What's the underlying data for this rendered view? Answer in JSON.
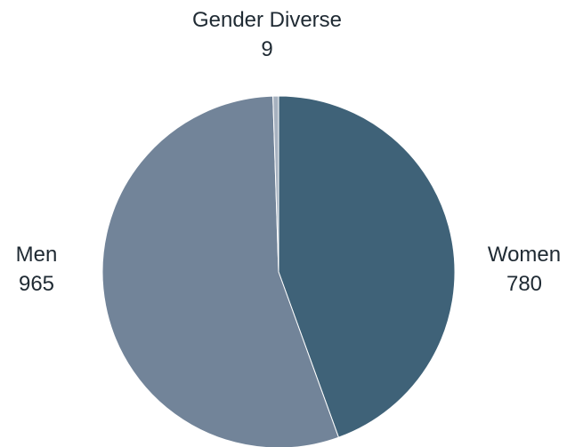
{
  "chart_data": {
    "type": "pie",
    "title": "",
    "slices": [
      {
        "label": "Women",
        "value": 780,
        "color": "#3f6278"
      },
      {
        "label": "Men",
        "value": 965,
        "color": "#728499"
      },
      {
        "label": "Gender Diverse",
        "value": 9,
        "color": "#a6b1bf"
      }
    ],
    "start": "top",
    "direction": "clockwise",
    "legend": "none",
    "label_placement": "outside"
  }
}
